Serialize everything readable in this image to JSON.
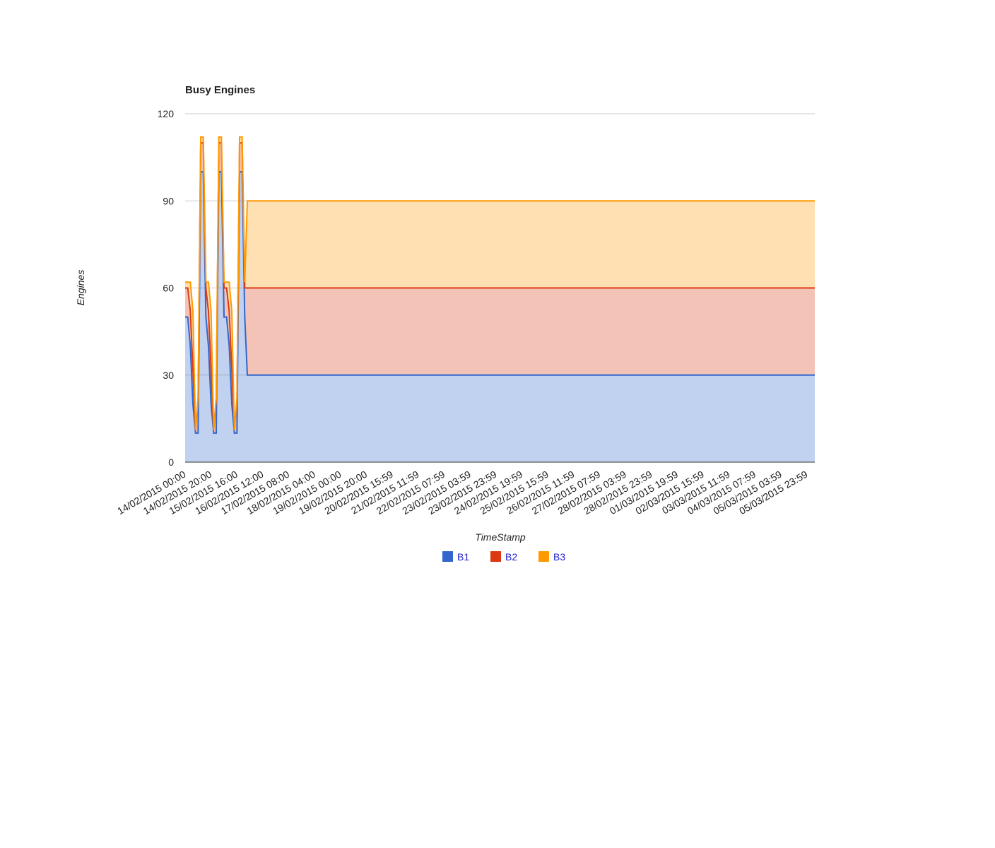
{
  "chart_data": {
    "type": "stacked_area",
    "title": "Busy Engines",
    "x_label": "TimeStamp",
    "y_label": "Engines",
    "categories": [
      "14/02/2015 00:00",
      null,
      null,
      null,
      null,
      null,
      null,
      null,
      null,
      null,
      "14/02/2015 20:00",
      null,
      null,
      null,
      null,
      null,
      null,
      null,
      null,
      null,
      "15/02/2015 16:00",
      null,
      null,
      null,
      null,
      null,
      null,
      null,
      null,
      null,
      "16/02/2015 12:00",
      null,
      null,
      null,
      null,
      null,
      null,
      null,
      null,
      null,
      "17/02/2015 08:00",
      null,
      null,
      null,
      null,
      null,
      null,
      null,
      null,
      null,
      "18/02/2015 04:00",
      null,
      null,
      null,
      null,
      null,
      null,
      null,
      null,
      null,
      "19/02/2015 00:00",
      null,
      null,
      null,
      null,
      null,
      null,
      null,
      null,
      null,
      "19/02/2015 20:00",
      null,
      null,
      null,
      null,
      null,
      null,
      null,
      null,
      null,
      "20/02/2015 15:59",
      null,
      null,
      null,
      null,
      null,
      null,
      null,
      null,
      null,
      "21/02/2015 11:59",
      null,
      null,
      null,
      null,
      null,
      null,
      null,
      null,
      null,
      "22/02/2015 07:59",
      null,
      null,
      null,
      null,
      null,
      null,
      null,
      null,
      null,
      "23/02/2015 03:59",
      null,
      null,
      null,
      null,
      null,
      null,
      null,
      null,
      null,
      "23/02/2015 23:59",
      null,
      null,
      null,
      null,
      null,
      null,
      null,
      null,
      null,
      "24/02/2015 19:59",
      null,
      null,
      null,
      null,
      null,
      null,
      null,
      null,
      null,
      "25/02/2015 15:59",
      null,
      null,
      null,
      null,
      null,
      null,
      null,
      null,
      null,
      "26/02/2015 11:59",
      null,
      null,
      null,
      null,
      null,
      null,
      null,
      null,
      null,
      "27/02/2015 07:59",
      null,
      null,
      null,
      null,
      null,
      null,
      null,
      null,
      null,
      "28/02/2015 03:59",
      null,
      null,
      null,
      null,
      null,
      null,
      null,
      null,
      null,
      "28/02/2015 23:59",
      null,
      null,
      null,
      null,
      null,
      null,
      null,
      null,
      null,
      "01/03/2015 19:59",
      null,
      null,
      null,
      null,
      null,
      null,
      null,
      null,
      null,
      "02/03/2015 15:59",
      null,
      null,
      null,
      null,
      null,
      null,
      null,
      null,
      null,
      "03/03/2015 11:59",
      null,
      null,
      null,
      null,
      null,
      null,
      null,
      null,
      null,
      "04/03/2015 07:59",
      null,
      null,
      null,
      null,
      null,
      null,
      null,
      null,
      null,
      "05/03/2015 03:59",
      null,
      null,
      null,
      null,
      null,
      null,
      null,
      null,
      null,
      "05/03/2015 23:59",
      null,
      null,
      null
    ],
    "series": [
      {
        "name": "B1",
        "color": "#3366cc",
        "values": [
          50,
          50,
          40,
          20,
          10,
          10,
          100,
          100,
          50,
          40,
          20,
          10,
          10,
          100,
          100,
          50,
          50,
          40,
          20,
          10,
          10,
          100,
          100,
          50,
          30,
          30,
          30,
          30,
          30,
          30,
          30,
          30,
          30,
          30,
          30,
          30,
          30,
          30,
          30,
          30,
          30,
          30,
          30,
          30,
          30,
          30,
          30,
          30,
          30,
          30,
          30,
          30,
          30,
          30,
          30,
          30,
          30,
          30,
          30,
          30,
          30,
          30,
          30,
          30,
          30,
          30,
          30,
          30,
          30,
          30,
          30,
          30,
          30,
          30,
          30,
          30,
          30,
          30,
          30,
          30,
          30,
          30,
          30,
          30,
          30,
          30,
          30,
          30,
          30,
          30,
          30,
          30,
          30,
          30,
          30,
          30,
          30,
          30,
          30,
          30,
          30,
          30,
          30,
          30,
          30,
          30,
          30,
          30,
          30,
          30,
          30,
          30,
          30,
          30,
          30,
          30,
          30,
          30,
          30,
          30,
          30,
          30,
          30,
          30,
          30,
          30,
          30,
          30,
          30,
          30,
          30,
          30,
          30,
          30,
          30,
          30,
          30,
          30,
          30,
          30,
          30,
          30,
          30,
          30,
          30,
          30,
          30,
          30,
          30,
          30,
          30,
          30,
          30,
          30,
          30,
          30,
          30,
          30,
          30,
          30,
          30,
          30,
          30,
          30,
          30,
          30,
          30,
          30,
          30,
          30,
          30,
          30,
          30,
          30,
          30,
          30,
          30,
          30,
          30,
          30,
          30,
          30,
          30,
          30,
          30,
          30,
          30,
          30,
          30,
          30,
          30,
          30,
          30,
          30,
          30,
          30,
          30,
          30,
          30,
          30,
          30,
          30,
          30,
          30,
          30,
          30,
          30,
          30,
          30,
          30,
          30,
          30,
          30,
          30,
          30,
          30,
          30,
          30,
          30,
          30,
          30,
          30,
          30,
          30,
          30,
          30,
          30,
          30,
          30,
          30,
          30,
          30,
          30,
          30,
          30,
          30,
          30,
          30,
          30,
          30,
          30,
          30,
          30,
          30
        ]
      },
      {
        "name": "B2",
        "color": "#dc3912",
        "values": [
          10,
          10,
          12,
          12,
          1,
          12,
          10,
          10,
          10,
          12,
          12,
          1,
          12,
          10,
          10,
          10,
          10,
          12,
          12,
          1,
          12,
          10,
          10,
          10,
          30,
          30,
          30,
          30,
          30,
          30,
          30,
          30,
          30,
          30,
          30,
          30,
          30,
          30,
          30,
          30,
          30,
          30,
          30,
          30,
          30,
          30,
          30,
          30,
          30,
          30,
          30,
          30,
          30,
          30,
          30,
          30,
          30,
          30,
          30,
          30,
          30,
          30,
          30,
          30,
          30,
          30,
          30,
          30,
          30,
          30,
          30,
          30,
          30,
          30,
          30,
          30,
          30,
          30,
          30,
          30,
          30,
          30,
          30,
          30,
          30,
          30,
          30,
          30,
          30,
          30,
          30,
          30,
          30,
          30,
          30,
          30,
          30,
          30,
          30,
          30,
          30,
          30,
          30,
          30,
          30,
          30,
          30,
          30,
          30,
          30,
          30,
          30,
          30,
          30,
          30,
          30,
          30,
          30,
          30,
          30,
          30,
          30,
          30,
          30,
          30,
          30,
          30,
          30,
          30,
          30,
          30,
          30,
          30,
          30,
          30,
          30,
          30,
          30,
          30,
          30,
          30,
          30,
          30,
          30,
          30,
          30,
          30,
          30,
          30,
          30,
          30,
          30,
          30,
          30,
          30,
          30,
          30,
          30,
          30,
          30,
          30,
          30,
          30,
          30,
          30,
          30,
          30,
          30,
          30,
          30,
          30,
          30,
          30,
          30,
          30,
          30,
          30,
          30,
          30,
          30,
          30,
          30,
          30,
          30,
          30,
          30,
          30,
          30,
          30,
          30,
          30,
          30,
          30,
          30,
          30,
          30,
          30,
          30,
          30,
          30,
          30,
          30,
          30,
          30,
          30,
          30,
          30,
          30,
          30,
          30,
          30,
          30,
          30,
          30,
          30,
          30,
          30,
          30,
          30,
          30,
          30,
          30,
          30,
          30,
          30,
          30,
          30,
          30,
          30,
          30,
          30,
          30,
          30,
          30,
          30,
          30,
          30,
          30,
          30,
          30,
          30,
          30,
          30,
          30
        ]
      },
      {
        "name": "B3",
        "color": "#ff9900",
        "values": [
          2,
          2,
          10,
          20,
          0,
          0,
          2,
          2,
          2,
          10,
          20,
          0,
          0,
          2,
          2,
          2,
          2,
          10,
          20,
          0,
          0,
          2,
          2,
          2,
          30,
          30,
          30,
          30,
          30,
          30,
          30,
          30,
          30,
          30,
          30,
          30,
          30,
          30,
          30,
          30,
          30,
          30,
          30,
          30,
          30,
          30,
          30,
          30,
          30,
          30,
          30,
          30,
          30,
          30,
          30,
          30,
          30,
          30,
          30,
          30,
          30,
          30,
          30,
          30,
          30,
          30,
          30,
          30,
          30,
          30,
          30,
          30,
          30,
          30,
          30,
          30,
          30,
          30,
          30,
          30,
          30,
          30,
          30,
          30,
          30,
          30,
          30,
          30,
          30,
          30,
          30,
          30,
          30,
          30,
          30,
          30,
          30,
          30,
          30,
          30,
          30,
          30,
          30,
          30,
          30,
          30,
          30,
          30,
          30,
          30,
          30,
          30,
          30,
          30,
          30,
          30,
          30,
          30,
          30,
          30,
          30,
          30,
          30,
          30,
          30,
          30,
          30,
          30,
          30,
          30,
          30,
          30,
          30,
          30,
          30,
          30,
          30,
          30,
          30,
          30,
          30,
          30,
          30,
          30,
          30,
          30,
          30,
          30,
          30,
          30,
          30,
          30,
          30,
          30,
          30,
          30,
          30,
          30,
          30,
          30,
          30,
          30,
          30,
          30,
          30,
          30,
          30,
          30,
          30,
          30,
          30,
          30,
          30,
          30,
          30,
          30,
          30,
          30,
          30,
          30,
          30,
          30,
          30,
          30,
          30,
          30,
          30,
          30,
          30,
          30,
          30,
          30,
          30,
          30,
          30,
          30,
          30,
          30,
          30,
          30,
          30,
          30,
          30,
          30,
          30,
          30,
          30,
          30,
          30,
          30,
          30,
          30,
          30,
          30,
          30,
          30,
          30,
          30,
          30,
          30,
          30,
          30,
          30,
          30,
          30,
          30,
          30,
          30,
          30,
          30,
          30,
          30,
          30,
          30,
          30,
          30,
          30,
          30,
          30,
          30,
          30,
          30,
          30,
          30
        ]
      }
    ],
    "ylim": [
      0,
      120
    ],
    "yticks": [
      0,
      30,
      60,
      90,
      120
    ],
    "grid": true,
    "legend": "bottom"
  }
}
